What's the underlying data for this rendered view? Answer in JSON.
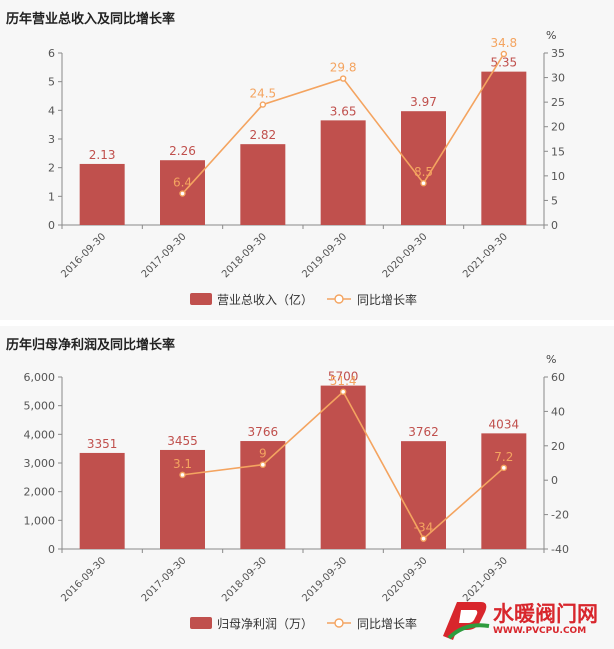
{
  "chart_data": [
    {
      "type": "bar",
      "title": "历年营业总收入及同比增长率",
      "categories": [
        "2016-09-30",
        "2017-09-30",
        "2018-09-30",
        "2019-09-30",
        "2020-09-30",
        "2021-09-30"
      ],
      "series": [
        {
          "name": "营业总收入（亿）",
          "kind": "bar",
          "axis": "left",
          "values": [
            2.13,
            2.26,
            2.82,
            3.65,
            3.97,
            5.35
          ],
          "labels": [
            "2.13",
            "2.26",
            "2.82",
            "3.65",
            "3.97",
            "5.35"
          ],
          "color": "#c0504d"
        },
        {
          "name": "同比增长率",
          "kind": "line",
          "axis": "right",
          "values": [
            null,
            6.4,
            24.5,
            29.8,
            8.5,
            34.8
          ],
          "labels": [
            "",
            "6.4",
            "24.5",
            "29.8",
            "8.5",
            "34.8"
          ],
          "color": "#f4a460"
        }
      ],
      "y_left": {
        "min": 0,
        "max": 6,
        "ticks": [
          0,
          1,
          2,
          3,
          4,
          5,
          6
        ],
        "tick_labels": [
          "0",
          "1",
          "2",
          "3",
          "4",
          "5",
          "6"
        ]
      },
      "y_right": {
        "min": 0,
        "max": 35,
        "unit": "%",
        "ticks": [
          0,
          5,
          10,
          15,
          20,
          25,
          30,
          35
        ],
        "tick_labels": [
          "0",
          "5",
          "10",
          "15",
          "20",
          "25",
          "30",
          "35"
        ]
      },
      "legend": "bottom",
      "grid": false
    },
    {
      "type": "bar",
      "title": "历年归母净利润及同比增长率",
      "categories": [
        "2016-09-30",
        "2017-09-30",
        "2018-09-30",
        "2019-09-30",
        "2020-09-30",
        "2021-09-30"
      ],
      "series": [
        {
          "name": "归母净利润（万）",
          "kind": "bar",
          "axis": "left",
          "values": [
            3351,
            3455,
            3766,
            5700,
            3762,
            4034
          ],
          "labels": [
            "3351",
            "3455",
            "3766",
            "5700",
            "3762",
            "4034"
          ],
          "color": "#c0504d"
        },
        {
          "name": "同比增长率",
          "kind": "line",
          "axis": "right",
          "values": [
            null,
            3.1,
            9,
            51.4,
            -34,
            7.2
          ],
          "labels": [
            "",
            "3.1",
            "9",
            "51.4",
            "-34",
            "7.2"
          ],
          "color": "#f4a460"
        }
      ],
      "y_left": {
        "min": 0,
        "max": 6000,
        "ticks": [
          0,
          1000,
          2000,
          3000,
          4000,
          5000,
          6000
        ],
        "tick_labels": [
          "0",
          "1,000",
          "2,000",
          "3,000",
          "4,000",
          "5,000",
          "6,000"
        ]
      },
      "y_right": {
        "min": -40,
        "max": 60,
        "unit": "%",
        "ticks": [
          -40,
          -20,
          0,
          20,
          40,
          60
        ],
        "tick_labels": [
          "-40",
          "-20",
          "0",
          "20",
          "40",
          "60"
        ]
      },
      "legend": "bottom",
      "grid": false
    }
  ],
  "watermark": {
    "text": "水暖阀门网",
    "url": "WWW.PVCPU.COM",
    "color": "#d8262c"
  }
}
